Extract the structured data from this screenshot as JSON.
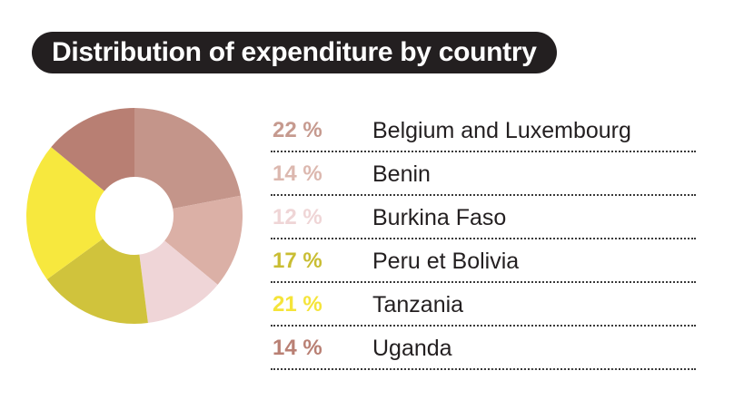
{
  "title": "Distribution of expenditure by country",
  "chart_data": {
    "type": "pie",
    "title": "Distribution of expenditure by country",
    "unit": "%",
    "categories": [
      "Belgium and Luxembourg",
      "Benin",
      "Burkina Faso",
      "Peru et Bolivia",
      "Tanzania",
      "Uganda"
    ],
    "values": [
      22,
      14,
      12,
      17,
      21,
      14
    ],
    "labels": [
      "22 %",
      "14 %",
      "12 %",
      "17 %",
      "21 %",
      "14 %"
    ],
    "colors": [
      "#c4958a",
      "#dbb0a6",
      "#efd5d7",
      "#d0c33c",
      "#f7e83e",
      "#b87f73"
    ],
    "label_colors": [
      "#c69a8f",
      "#dcb8af",
      "#efd5d6",
      "#c9bd33",
      "#f5e43a",
      "#b98074"
    ],
    "hole": true
  }
}
